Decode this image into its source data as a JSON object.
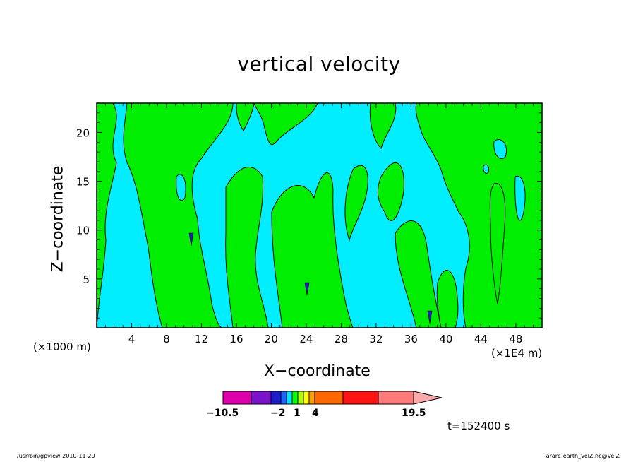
{
  "chart_data": {
    "type": "heatmap",
    "title": "vertical velocity",
    "xlabel": "X−coordinate",
    "ylabel": "Z−coordinate",
    "x_unit_label": "(×1000 m)",
    "x_scale_label": "(×1E4 m)",
    "xlim": [
      0,
      51
    ],
    "ylim": [
      0,
      23
    ],
    "x_ticks": [
      "4",
      "8",
      "12",
      "16",
      "20",
      "24",
      "28",
      "32",
      "36",
      "40",
      "44",
      "48"
    ],
    "x_tick_values": [
      4,
      8,
      12,
      16,
      20,
      24,
      28,
      32,
      36,
      40,
      44,
      48
    ],
    "y_ticks": [
      "5",
      "10",
      "15",
      "20"
    ],
    "y_tick_values": [
      5,
      10,
      15,
      20
    ],
    "colorbar": {
      "labels": [
        "−10.5",
        "−2",
        "1",
        "4",
        "19.5"
      ],
      "colors": [
        "#dd00aa",
        "#7a14c8",
        "#1c1cc8",
        "#1a66ff",
        "#00e5ff",
        "#00ff00",
        "#aaff00",
        "#ffff00",
        "#ffa000",
        "#ff6800",
        "#ff1414",
        "#ff7a7a",
        "#ffaaaa"
      ]
    },
    "field_colors": {
      "negative": "#00eeff",
      "positive": "#00ee00"
    }
  },
  "time_label": "t=152400 s",
  "footer": {
    "left": "/usr/bin/gpview   2010-11-20",
    "right": "arare-earth_VelZ.nc@VelZ"
  }
}
